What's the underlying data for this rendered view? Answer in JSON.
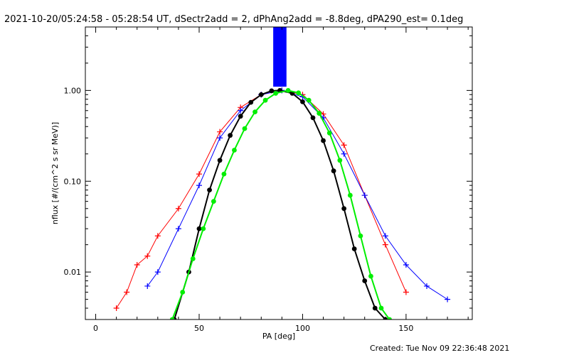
{
  "chart_data": {
    "type": "line",
    "title": "2021-10-20/05:24:58 - 05:28:54 UT, dSectr2add = 2, dPhAng2add = -8.8deg, dPA290_est=  0.1deg",
    "xlabel": "PA [deg]",
    "ylabel": "nflux [#/(cm^2 s sr MeV)]",
    "xlim": [
      -5,
      182
    ],
    "ylim": [
      0.003,
      5.0
    ],
    "yscale": "log",
    "x_ticks": [
      0,
      50,
      100,
      150
    ],
    "x_tick_labels": [
      "0",
      "50",
      "100",
      "150"
    ],
    "y_ticks": [
      0.01,
      0.1,
      1.0
    ],
    "y_tick_labels": [
      "0.01",
      "0.10",
      "1.00"
    ],
    "grid": false,
    "footer": "Created: Tue Nov 09 22:36:48 2021",
    "colors": {
      "red_series": "#ff0000",
      "blue_series": "#0000ff",
      "black_fit": "#000000",
      "green_fit": "#00ee00"
    },
    "series": [
      {
        "color": "red",
        "marker": "plus",
        "profile": "gaussian-like peaked at 90 deg",
        "x": [
          10,
          15,
          20,
          25,
          30,
          40,
          50,
          60,
          70,
          80,
          90,
          100,
          110,
          120,
          130,
          140,
          150
        ],
        "y": [
          0.004,
          0.006,
          0.012,
          0.015,
          0.025,
          0.05,
          0.12,
          0.35,
          0.65,
          0.9,
          1.0,
          0.9,
          0.55,
          0.25,
          0.07,
          0.02,
          0.006
        ]
      },
      {
        "color": "blue",
        "marker": "plus",
        "profile": "gaussian-like peaked at 90 deg",
        "x": [
          25,
          30,
          40,
          50,
          60,
          70,
          80,
          90,
          100,
          110,
          120,
          130,
          140,
          150,
          160,
          170
        ],
        "y": [
          0.007,
          0.01,
          0.03,
          0.09,
          0.3,
          0.6,
          0.9,
          1.0,
          0.85,
          0.5,
          0.2,
          0.07,
          0.025,
          0.012,
          0.007,
          0.005
        ]
      },
      {
        "color": "blue",
        "marker": "vertical-bar",
        "x": [
          87,
          89,
          91
        ],
        "y": [
          5.0,
          5.0,
          5.0
        ],
        "y_bottom": 1.1
      },
      {
        "color": "black",
        "marker": "dot",
        "profile": "fit curve peaked at ~89 deg",
        "x": [
          38,
          45,
          50,
          55,
          60,
          65,
          70,
          75,
          80,
          85,
          89,
          95,
          100,
          105,
          110,
          115,
          120,
          125,
          130,
          135,
          140
        ],
        "y": [
          0.003,
          0.01,
          0.03,
          0.08,
          0.17,
          0.32,
          0.52,
          0.74,
          0.9,
          0.99,
          1.0,
          0.93,
          0.75,
          0.5,
          0.28,
          0.13,
          0.05,
          0.018,
          0.008,
          0.004,
          0.003
        ]
      },
      {
        "color": "green",
        "marker": "dot",
        "profile": "fit curve peaked at ~93 deg",
        "x": [
          37,
          42,
          47,
          52,
          57,
          62,
          67,
          72,
          77,
          82,
          87,
          93,
          98,
          103,
          108,
          113,
          118,
          123,
          128,
          133,
          138,
          142
        ],
        "y": [
          0.003,
          0.006,
          0.014,
          0.03,
          0.06,
          0.12,
          0.22,
          0.38,
          0.58,
          0.78,
          0.93,
          1.0,
          0.94,
          0.78,
          0.56,
          0.34,
          0.17,
          0.07,
          0.025,
          0.009,
          0.004,
          0.003
        ]
      }
    ]
  }
}
